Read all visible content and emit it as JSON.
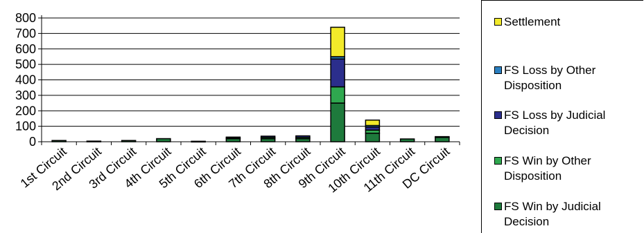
{
  "chart_data": {
    "type": "bar",
    "stacked": true,
    "categories": [
      "1st Circuit",
      "2nd Circuit",
      "3rd Circuit",
      "4th Circuit",
      "5th Circuit",
      "6th Circuit",
      "7th Circuit",
      "8th Circuit",
      "9th Circuit",
      "10th Circuit",
      "11th Circuit",
      "DC Circuit"
    ],
    "ylim": [
      0,
      800
    ],
    "yticks": [
      0,
      100,
      200,
      300,
      400,
      500,
      600,
      700,
      800
    ],
    "grid": true,
    "legend_position": "right",
    "series": [
      {
        "name": "FS Win by Judicial Decision",
        "color": "#1e7a3c",
        "values": [
          8,
          4,
          8,
          20,
          3,
          20,
          20,
          20,
          250,
          55,
          18,
          28
        ]
      },
      {
        "name": "FS Win by Other Disposition",
        "color": "#2fa84f",
        "values": [
          0,
          0,
          0,
          0,
          0,
          5,
          8,
          8,
          105,
          20,
          0,
          0
        ]
      },
      {
        "name": "FS Loss by Judicial Decision",
        "color": "#2b2e8c",
        "values": [
          0,
          0,
          0,
          0,
          0,
          5,
          8,
          10,
          180,
          20,
          0,
          5
        ]
      },
      {
        "name": "FS Loss by Other Disposition",
        "color": "#2a7fc0",
        "values": [
          0,
          0,
          0,
          0,
          0,
          0,
          0,
          0,
          15,
          10,
          0,
          0
        ]
      },
      {
        "name": "Settlement",
        "color": "#f2ea2a",
        "values": [
          0,
          0,
          0,
          0,
          0,
          0,
          0,
          0,
          190,
          35,
          0,
          0
        ]
      }
    ]
  }
}
